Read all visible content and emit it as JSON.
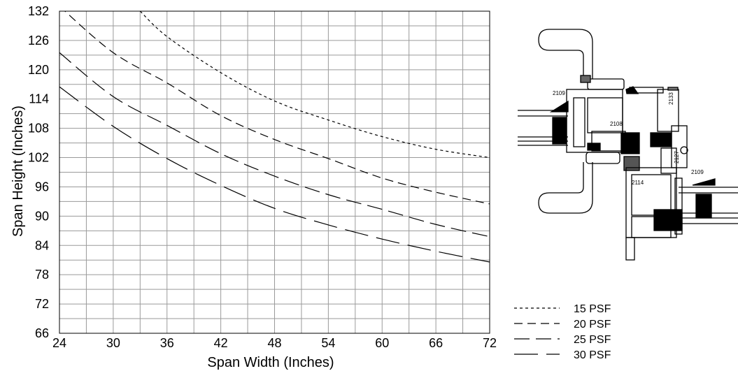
{
  "chart_data": {
    "type": "line",
    "title": "",
    "xlabel": "Span Width (Inches)",
    "ylabel": "Span Height (Inches)",
    "xlim": [
      24,
      72
    ],
    "ylim": [
      66,
      132
    ],
    "x_ticks": [
      "24",
      "30",
      "36",
      "42",
      "48",
      "54",
      "60",
      "66",
      "72"
    ],
    "y_ticks": [
      "66",
      "72",
      "78",
      "84",
      "90",
      "96",
      "102",
      "108",
      "114",
      "120",
      "126",
      "132"
    ],
    "grid": true,
    "legend_position": "bottom-right",
    "series": [
      {
        "name": "15 PSF",
        "dash": "4 4",
        "x": [
          33,
          36,
          42,
          48,
          54,
          60,
          66,
          72
        ],
        "y": [
          132,
          126.8,
          119.4,
          113.6,
          109.7,
          106.3,
          103.7,
          102
        ]
      },
      {
        "name": "20 PSF",
        "dash": "12 7",
        "x": [
          24,
          30,
          36,
          42,
          48,
          54,
          60,
          66,
          72
        ],
        "y": [
          133,
          123.5,
          117.3,
          110.6,
          105.7,
          101.8,
          97.8,
          94.9,
          92.5
        ]
      },
      {
        "name": "25 PSF",
        "dash": "22 9",
        "x": [
          24,
          30,
          36,
          42,
          48,
          54,
          60,
          66,
          72
        ],
        "y": [
          123.5,
          114.5,
          108.6,
          102.8,
          98.2,
          94.4,
          91.4,
          88.3,
          85.8
        ]
      },
      {
        "name": "30 PSF",
        "dash": "34 12",
        "x": [
          24,
          30,
          36,
          42,
          48,
          54,
          60,
          66,
          72
        ],
        "y": [
          116.5,
          108.4,
          101.8,
          96.3,
          91.6,
          88.2,
          85.3,
          82.8,
          80.6
        ]
      }
    ]
  },
  "diagram": {
    "part_labels": [
      "2109",
      "2133",
      "2108",
      "2127",
      "2109",
      "2114"
    ]
  }
}
